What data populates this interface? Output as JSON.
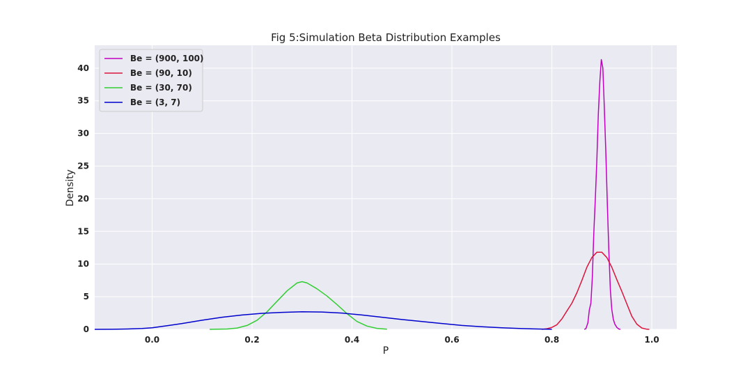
{
  "chart_data": {
    "type": "line",
    "title": "Fig 5:Simulation Beta Distribution Examples",
    "xlabel": "P",
    "ylabel": "Density",
    "xlim": [
      -0.115,
      1.05
    ],
    "ylim": [
      0,
      43.5
    ],
    "xticks": [
      "0.0",
      "0.2",
      "0.4",
      "0.6",
      "0.8",
      "1.0"
    ],
    "yticks": [
      "0",
      "5",
      "10",
      "15",
      "20",
      "25",
      "30",
      "35",
      "40"
    ],
    "grid": true,
    "legend_position": "upper-left",
    "series": [
      {
        "name": "Be = (900, 100)",
        "color": "#c000c0",
        "points": [
          [
            0.865,
            0
          ],
          [
            0.868,
            0.1
          ],
          [
            0.872,
            1
          ],
          [
            0.875,
            3
          ],
          [
            0.878,
            4
          ],
          [
            0.881,
            8
          ],
          [
            0.884,
            15
          ],
          [
            0.887,
            20
          ],
          [
            0.89,
            26
          ],
          [
            0.893,
            33
          ],
          [
            0.896,
            38
          ],
          [
            0.899,
            41.3
          ],
          [
            0.902,
            40
          ],
          [
            0.905,
            34
          ],
          [
            0.908,
            27
          ],
          [
            0.911,
            19
          ],
          [
            0.914,
            12
          ],
          [
            0.917,
            6
          ],
          [
            0.92,
            3
          ],
          [
            0.923,
            1.5
          ],
          [
            0.926,
            0.8
          ],
          [
            0.93,
            0.3
          ],
          [
            0.934,
            0.05
          ],
          [
            0.937,
            0
          ]
        ]
      },
      {
        "name": "Be = (90, 10)",
        "color": "#dc143c",
        "points": [
          [
            0.78,
            0
          ],
          [
            0.79,
            0.1
          ],
          [
            0.8,
            0.3
          ],
          [
            0.81,
            0.7
          ],
          [
            0.82,
            1.6
          ],
          [
            0.83,
            2.8
          ],
          [
            0.84,
            4
          ],
          [
            0.85,
            5.6
          ],
          [
            0.86,
            7.5
          ],
          [
            0.87,
            9.5
          ],
          [
            0.88,
            11
          ],
          [
            0.89,
            11.8
          ],
          [
            0.9,
            11.8
          ],
          [
            0.91,
            11
          ],
          [
            0.92,
            9.5
          ],
          [
            0.93,
            7.6
          ],
          [
            0.94,
            5.8
          ],
          [
            0.95,
            3.9
          ],
          [
            0.96,
            2
          ],
          [
            0.97,
            0.8
          ],
          [
            0.98,
            0.2
          ],
          [
            0.99,
            0.02
          ],
          [
            0.995,
            0
          ]
        ]
      },
      {
        "name": "Be = (30, 70)",
        "color": "#32cd32",
        "points": [
          [
            0.115,
            0
          ],
          [
            0.13,
            0.02
          ],
          [
            0.15,
            0.05
          ],
          [
            0.17,
            0.2
          ],
          [
            0.19,
            0.6
          ],
          [
            0.21,
            1.4
          ],
          [
            0.23,
            2.7
          ],
          [
            0.25,
            4.3
          ],
          [
            0.27,
            5.9
          ],
          [
            0.29,
            7.1
          ],
          [
            0.3,
            7.3
          ],
          [
            0.31,
            7.1
          ],
          [
            0.33,
            6.2
          ],
          [
            0.35,
            5.1
          ],
          [
            0.37,
            3.8
          ],
          [
            0.39,
            2.4
          ],
          [
            0.41,
            1.2
          ],
          [
            0.43,
            0.5
          ],
          [
            0.45,
            0.15
          ],
          [
            0.47,
            0.02
          ]
        ]
      },
      {
        "name": "Be = (3, 7)",
        "color": "#0000cd",
        "points": [
          [
            -0.115,
            0
          ],
          [
            -0.08,
            0.01
          ],
          [
            -0.05,
            0.05
          ],
          [
            -0.02,
            0.13
          ],
          [
            0.0,
            0.25
          ],
          [
            0.03,
            0.55
          ],
          [
            0.06,
            0.9
          ],
          [
            0.1,
            1.4
          ],
          [
            0.14,
            1.85
          ],
          [
            0.18,
            2.2
          ],
          [
            0.22,
            2.45
          ],
          [
            0.26,
            2.6
          ],
          [
            0.3,
            2.7
          ],
          [
            0.34,
            2.65
          ],
          [
            0.38,
            2.5
          ],
          [
            0.42,
            2.2
          ],
          [
            0.46,
            1.85
          ],
          [
            0.5,
            1.5
          ],
          [
            0.54,
            1.2
          ],
          [
            0.58,
            0.9
          ],
          [
            0.62,
            0.6
          ],
          [
            0.66,
            0.4
          ],
          [
            0.7,
            0.25
          ],
          [
            0.74,
            0.12
          ],
          [
            0.78,
            0.04
          ],
          [
            0.8,
            0.01
          ]
        ]
      }
    ]
  }
}
